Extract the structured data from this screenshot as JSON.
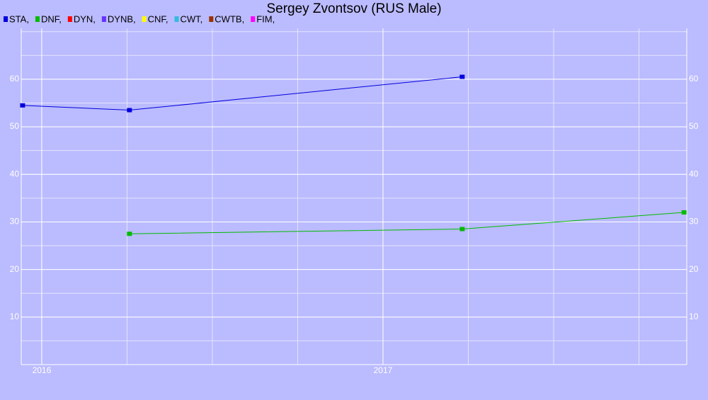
{
  "chart_data": {
    "type": "line",
    "title": "Sergey Zvontsov (RUS Male)",
    "series": [
      {
        "name": "STA,",
        "color": "#0000dd",
        "x": [
          2015.944,
          2016.257,
          2017.232
        ],
        "values": [
          54.5,
          53.5,
          60.5
        ]
      },
      {
        "name": "DNF,",
        "color": "#00bb00",
        "x": [
          2016.257,
          2017.232,
          2017.882
        ],
        "values": [
          27.5,
          28.5,
          32
        ]
      },
      {
        "name": "DYN,",
        "color": "#ff0000",
        "x": [],
        "values": []
      },
      {
        "name": "DYNB,",
        "color": "#6633ff",
        "x": [],
        "values": []
      },
      {
        "name": "CNF,",
        "color": "#ffff00",
        "x": [],
        "values": []
      },
      {
        "name": "CWT,",
        "color": "#33bbdd",
        "x": [],
        "values": []
      },
      {
        "name": "CWTB,",
        "color": "#993300",
        "x": [],
        "values": []
      },
      {
        "name": "FIM,",
        "color": "#ff00ff",
        "x": [],
        "values": []
      }
    ],
    "xlim": [
      2015.94,
      2017.89
    ],
    "xticks": [
      2016,
      2017
    ],
    "ylim": [
      0,
      70.7
    ],
    "yticks": [
      10,
      20,
      30,
      40,
      50,
      60
    ],
    "grid": true
  }
}
